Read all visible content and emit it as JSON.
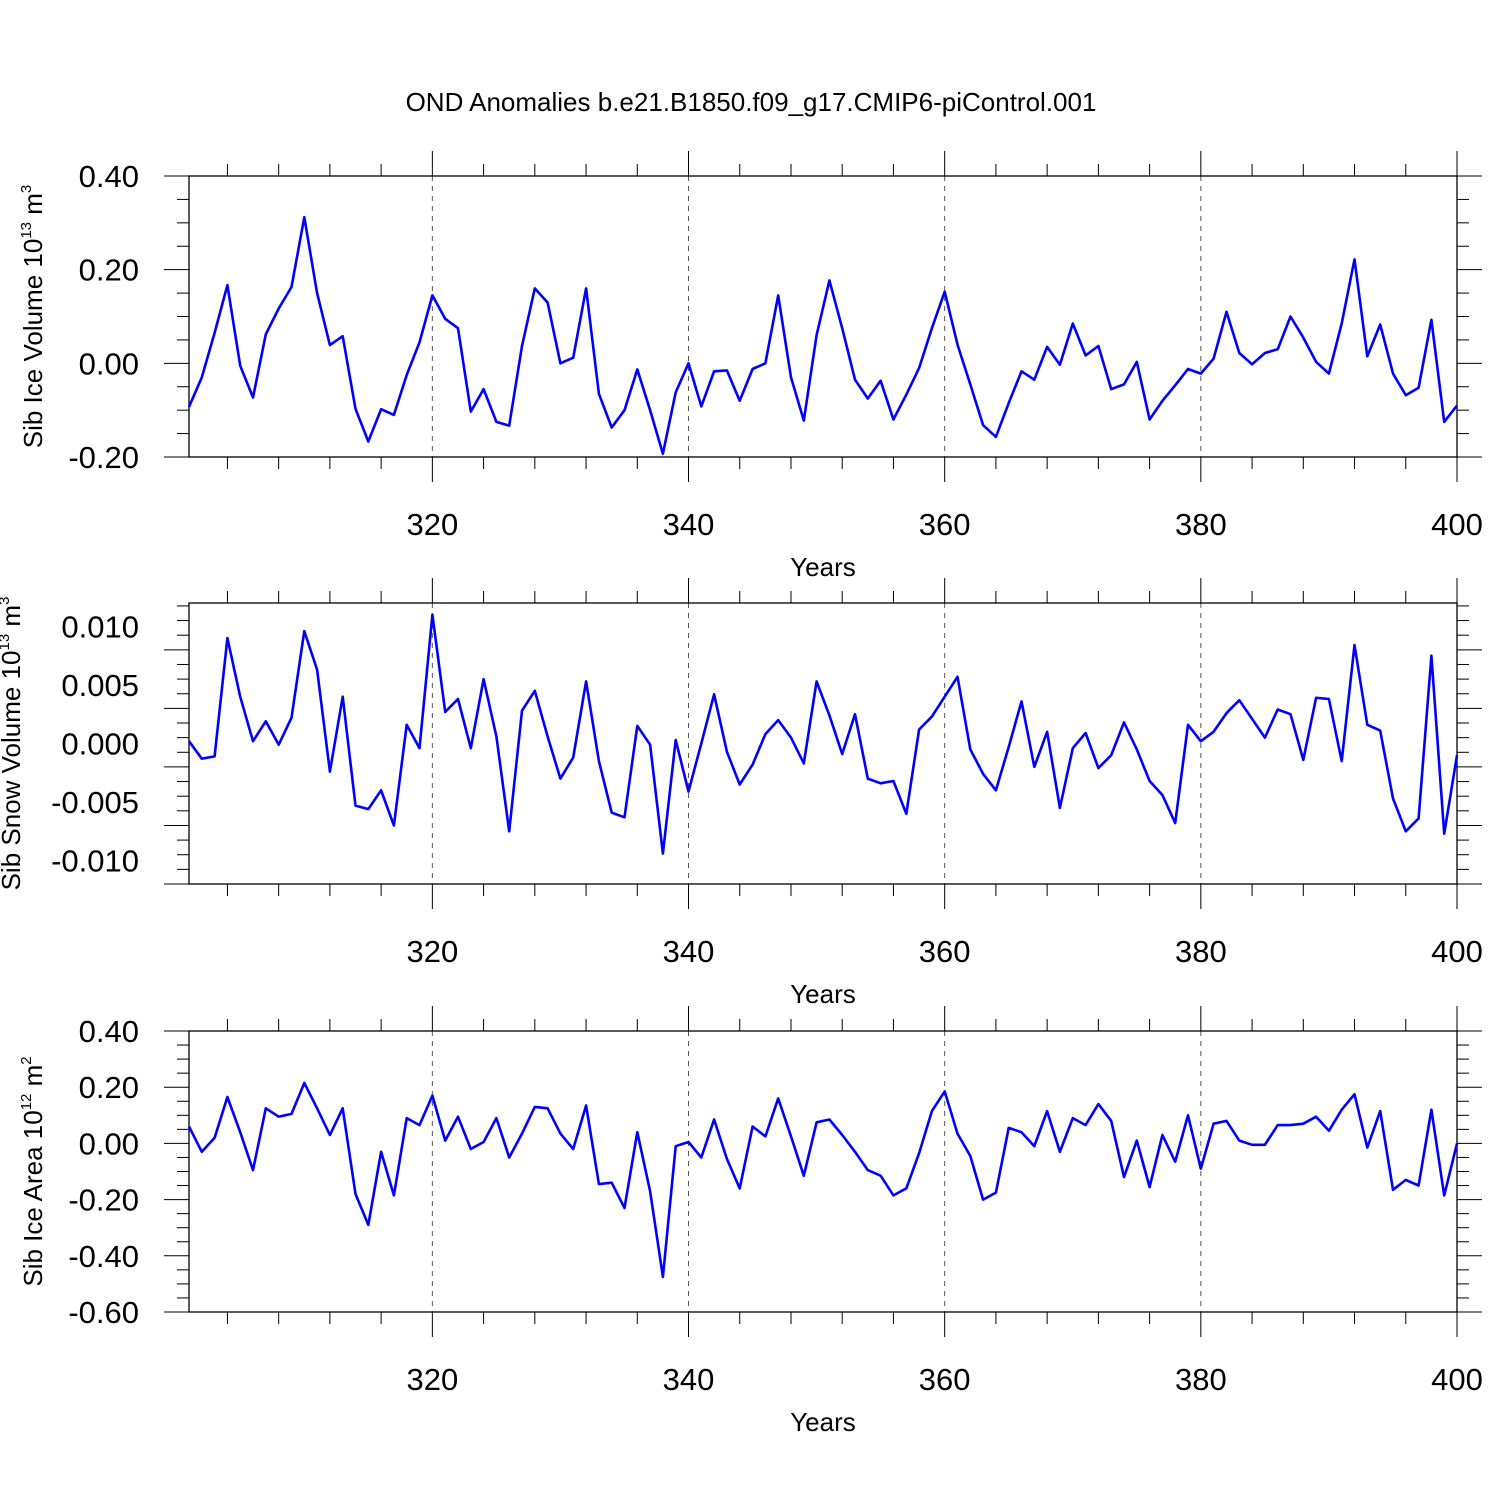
{
  "title": "OND Anomalies b.e21.B1850.f09_g17.CMIP6-piControl.001",
  "colors": {
    "series": "#0000ff",
    "frame": "#000000",
    "grid": "#555555"
  },
  "chart_data": [
    {
      "type": "line",
      "xlabel": "Years",
      "ylabel_text": "Sib Ice Volume 10",
      "ylabel_exponent": "13",
      "ylabel_unit": " m",
      "ylabel_unit_exponent": "3",
      "xlim": [
        301,
        400
      ],
      "ylim": [
        -0.2,
        0.4
      ],
      "yticks": [
        -0.2,
        0.0,
        0.2,
        0.4
      ],
      "ytick_labels": [
        "-0.20",
        "0.00",
        "0.20",
        "0.40"
      ],
      "xticks": [
        320,
        340,
        360,
        380,
        400
      ],
      "xtick_labels": [
        "320",
        "340",
        "360",
        "380",
        "400"
      ],
      "grid": "vertical dashed at major x ticks",
      "x_start": 301,
      "values": [
        -0.093,
        -0.03,
        0.065,
        0.167,
        -0.005,
        -0.073,
        0.062,
        0.117,
        0.163,
        0.312,
        0.15,
        0.039,
        0.058,
        -0.097,
        -0.167,
        -0.098,
        -0.11,
        -0.025,
        0.045,
        0.145,
        0.095,
        0.075,
        -0.103,
        -0.055,
        -0.125,
        -0.133,
        0.037,
        0.16,
        0.13,
        0.0,
        0.012,
        0.16,
        -0.065,
        -0.137,
        -0.1,
        -0.013,
        -0.1,
        -0.193,
        -0.062,
        0.0,
        -0.092,
        -0.017,
        -0.015,
        -0.08,
        -0.012,
        0.0,
        0.145,
        -0.03,
        -0.122,
        0.06,
        0.177,
        0.075,
        -0.035,
        -0.075,
        -0.037,
        -0.12,
        -0.067,
        -0.01,
        0.075,
        0.153,
        0.04,
        -0.045,
        -0.132,
        -0.157,
        -0.085,
        -0.017,
        -0.035,
        0.035,
        -0.003,
        0.085,
        0.017,
        0.037,
        -0.055,
        -0.045,
        0.003,
        -0.12,
        -0.08,
        -0.047,
        -0.012,
        -0.022,
        0.01,
        0.11,
        0.022,
        -0.002,
        0.022,
        0.03,
        0.1,
        0.055,
        0.003,
        -0.022,
        0.085,
        0.222,
        0.015,
        0.083,
        -0.022,
        -0.068,
        -0.052,
        0.093,
        -0.125,
        -0.09
      ]
    },
    {
      "type": "line",
      "xlabel": "Years",
      "ylabel_text": "Sib Snow Volume 10",
      "ylabel_exponent": "13",
      "ylabel_unit": " m",
      "ylabel_unit_exponent": "3",
      "xlim": [
        301,
        400
      ],
      "ylim": [
        -0.012,
        0.012
      ],
      "yticks": [
        -0.01,
        -0.005,
        0.0,
        0.005,
        0.01
      ],
      "ytick_labels": [
        "-0.010",
        "-0.005",
        "0.000",
        "0.005",
        "0.010"
      ],
      "xticks": [
        320,
        340,
        360,
        380,
        400
      ],
      "xtick_labels": [
        "320",
        "340",
        "360",
        "380",
        "400"
      ],
      "grid": "vertical dashed at major x ticks",
      "x_start": 301,
      "values": [
        0.0002,
        -0.0013,
        -0.0011,
        0.009,
        0.004,
        0.0002,
        0.0019,
        -0.0001,
        0.0022,
        0.0096,
        0.0063,
        -0.0024,
        0.004,
        -0.0053,
        -0.0056,
        -0.004,
        -0.007,
        0.0016,
        -0.0004,
        0.011,
        0.0027,
        0.0038,
        -0.0004,
        0.0055,
        0.0006,
        -0.0075,
        0.0028,
        0.0045,
        0.0006,
        -0.003,
        -0.0012,
        0.0053,
        -0.0015,
        -0.0059,
        -0.0063,
        0.0015,
        -0.0001,
        -0.0094,
        0.0003,
        -0.0041,
        0.0,
        0.0042,
        -0.0007,
        -0.0035,
        -0.0018,
        0.0008,
        0.002,
        0.0005,
        -0.0017,
        0.0053,
        0.0024,
        -0.0009,
        0.0025,
        -0.003,
        -0.0034,
        -0.0032,
        -0.006,
        0.0012,
        0.0023,
        0.004,
        0.0057,
        -0.0005,
        -0.0026,
        -0.004,
        -0.0003,
        0.0036,
        -0.002,
        0.001,
        -0.0055,
        -0.0004,
        0.0009,
        -0.0021,
        -0.001,
        0.0018,
        -0.0005,
        -0.0032,
        -0.0044,
        -0.0068,
        0.0016,
        0.0002,
        0.001,
        0.0026,
        0.0037,
        0.0021,
        0.0005,
        0.0029,
        0.0025,
        -0.0014,
        0.0039,
        0.0038,
        -0.0015,
        0.0084,
        0.0016,
        0.0011,
        -0.0047,
        -0.0075,
        -0.0064,
        0.0075,
        -0.0077,
        -0.001
      ]
    },
    {
      "type": "line",
      "xlabel": "Years",
      "ylabel_text": "Sib Ice Area 10",
      "ylabel_exponent": "12",
      "ylabel_unit": " m",
      "ylabel_unit_exponent": "2",
      "xlim": [
        301,
        400
      ],
      "ylim": [
        -0.6,
        0.4
      ],
      "yticks": [
        -0.6,
        -0.4,
        -0.2,
        0.0,
        0.2,
        0.4
      ],
      "ytick_labels": [
        "-0.60",
        "-0.40",
        "-0.20",
        "0.00",
        "0.20",
        "0.40"
      ],
      "xticks": [
        320,
        340,
        360,
        380,
        400
      ],
      "xtick_labels": [
        "320",
        "340",
        "360",
        "380",
        "400"
      ],
      "grid": "vertical dashed at major x ticks",
      "x_start": 301,
      "values": [
        0.06,
        -0.03,
        0.02,
        0.165,
        0.04,
        -0.095,
        0.125,
        0.095,
        0.105,
        0.215,
        0.125,
        0.03,
        0.125,
        -0.18,
        -0.29,
        -0.03,
        -0.185,
        0.09,
        0.065,
        0.17,
        0.01,
        0.095,
        -0.02,
        0.005,
        0.09,
        -0.05,
        0.035,
        0.13,
        0.125,
        0.035,
        -0.02,
        0.135,
        -0.145,
        -0.14,
        -0.23,
        0.04,
        -0.17,
        -0.475,
        -0.01,
        0.005,
        -0.05,
        0.085,
        -0.055,
        -0.16,
        0.06,
        0.025,
        0.16,
        0.025,
        -0.115,
        0.075,
        0.085,
        0.03,
        -0.03,
        -0.095,
        -0.115,
        -0.185,
        -0.16,
        -0.035,
        0.115,
        0.185,
        0.035,
        -0.045,
        -0.2,
        -0.175,
        0.055,
        0.04,
        -0.01,
        0.115,
        -0.03,
        0.09,
        0.065,
        0.14,
        0.08,
        -0.12,
        0.01,
        -0.155,
        0.03,
        -0.065,
        0.1,
        -0.09,
        0.07,
        0.08,
        0.01,
        -0.005,
        -0.005,
        0.065,
        0.065,
        0.07,
        0.095,
        0.045,
        0.12,
        0.175,
        -0.015,
        0.115,
        -0.165,
        -0.13,
        -0.15,
        0.12,
        -0.185,
        0.0
      ]
    }
  ]
}
